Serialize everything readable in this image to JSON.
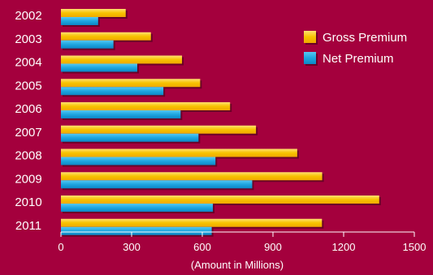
{
  "colors": {
    "background": "#a4003d",
    "gross": "#f5c400",
    "net": "#1ea6e0",
    "text": "#ffffff"
  },
  "chart_data": {
    "type": "bar",
    "orientation": "horizontal",
    "categories": [
      "2002",
      "2003",
      "2004",
      "2005",
      "2006",
      "2007",
      "2008",
      "2009",
      "2010",
      "2011"
    ],
    "series": [
      {
        "name": "Gross Premium",
        "values": [
          275,
          382,
          514,
          591,
          718,
          828,
          1003,
          1109,
          1351,
          1108
        ]
      },
      {
        "name": "Net Premium",
        "values": [
          158,
          223,
          324,
          435,
          508,
          584,
          656,
          812,
          645,
          640
        ]
      }
    ],
    "xlabel": "(Amount in Millions)",
    "xlim": [
      0,
      1500
    ],
    "xticks": [
      0,
      300,
      600,
      900,
      1200,
      1500
    ],
    "grid": false,
    "legend": "top-right"
  }
}
